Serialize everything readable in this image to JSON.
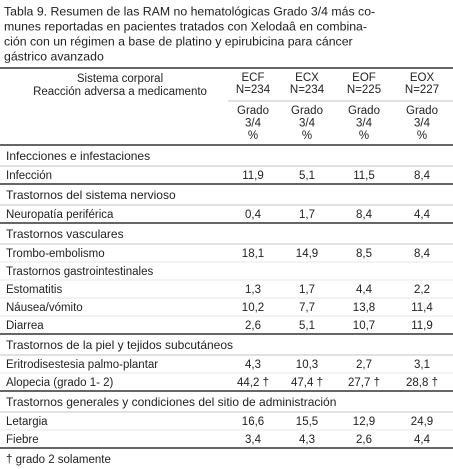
{
  "title": {
    "lines": [
      "Tabla 9. Resumen de las RAM no hematológicas Grado 3/4 más co-",
      "munes reportadas en pacientes tratados con Xelodaâ en combina-",
      "ción con un régimen a base de platino y epirubicina para cáncer",
      "gástrico avanzado"
    ]
  },
  "table": {
    "header": {
      "label_lines": [
        "Sistema corporal",
        "Reacción adversa a medicamento"
      ],
      "columns": [
        {
          "name": "ECF",
          "n": "N=234",
          "unit": [
            "Grado",
            "3/4",
            "%"
          ]
        },
        {
          "name": "ECX",
          "n": "N=234",
          "unit": [
            "Grado",
            "3/4",
            "%"
          ]
        },
        {
          "name": "EOF",
          "n": "N=225",
          "unit": [
            "Grado",
            "3/4",
            "%"
          ]
        },
        {
          "name": "EOX",
          "n": "N=227",
          "unit": [
            "Grado",
            "3/4",
            "%"
          ]
        }
      ]
    },
    "sections": [
      {
        "title": "Infecciones e infestaciones",
        "rows": [
          {
            "label": "Infección",
            "values": [
              "11,9",
              "5,1",
              "11,5",
              "8,4"
            ]
          }
        ]
      },
      {
        "title": "Trastornos del sistema nervioso",
        "rows": [
          {
            "label": "Neuropatía periférica",
            "values": [
              "0,4",
              "1,7",
              "8,4",
              "4,4"
            ]
          }
        ]
      },
      {
        "title": "Trastornos vasculares",
        "rows": [
          {
            "label": "Trombo-embolismo",
            "values": [
              "18,1",
              "14,9",
              "8,5",
              "8,4"
            ]
          },
          {
            "label": "Trastornos gastrointestinales"
          },
          {
            "label": "Estomatitis",
            "values": [
              "1,3",
              "1,7",
              "4,4",
              "2,2"
            ]
          },
          {
            "label": "Náusea/vómito",
            "values": [
              "10,2",
              "7,7",
              "13,8",
              "11,4"
            ]
          },
          {
            "label": "Diarrea",
            "values": [
              "2,6",
              "5,1",
              "10,7",
              "11,9"
            ]
          }
        ]
      },
      {
        "title": "Trastornos de la piel y tejidos subcutáneos",
        "rows": [
          {
            "label": "Eritrodisestesia palmo-plantar",
            "values": [
              "4,3",
              "10,3",
              "2,7",
              "3,1"
            ]
          },
          {
            "label": "Alopecia (grado 1- 2)",
            "values": [
              "44,2 †",
              "47,4 †",
              "27,7 †",
              "28,8 †"
            ]
          }
        ]
      },
      {
        "title": "Trastornos generales y condiciones del sitio de administración",
        "rows": [
          {
            "label": "Letargia",
            "values": [
              "16,6",
              "15,5",
              "12,9",
              "24,9"
            ]
          },
          {
            "label": "Fiebre",
            "values": [
              "3,4",
              "4,3",
              "2,6",
              "4,4"
            ]
          }
        ]
      }
    ],
    "footnote": "†  grado 2 solamente"
  }
}
